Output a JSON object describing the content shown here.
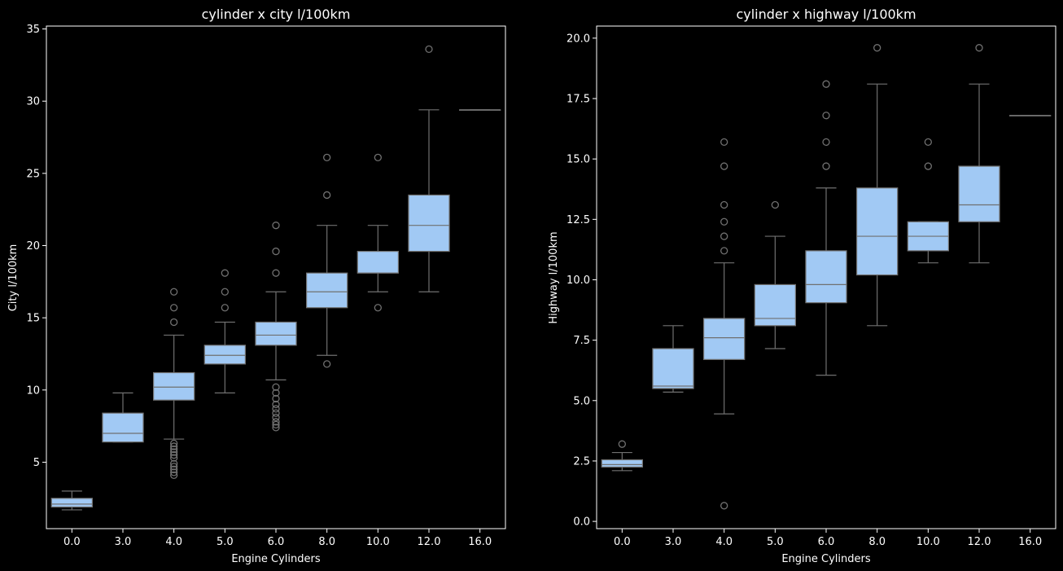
{
  "theme": {
    "background": "#000000",
    "spine_color": "#ffffff",
    "text_color": "#ffffff",
    "box_fill": "#a1c9f4",
    "line_color": "#707070"
  },
  "chart_data": [
    {
      "type": "box",
      "title": "cylinder x city l/100km",
      "xlabel": "Engine Cylinders",
      "ylabel": "City l/100km",
      "categories": [
        "0.0",
        "3.0",
        "4.0",
        "5.0",
        "6.0",
        "8.0",
        "10.0",
        "12.0",
        "16.0"
      ],
      "ylim": [
        0.4,
        35.2
      ],
      "yticks": [
        5,
        10,
        15,
        20,
        25,
        30,
        35
      ],
      "ytick_labels": [
        "5",
        "10",
        "15",
        "20",
        "25",
        "30",
        "35"
      ],
      "grid": false,
      "boxes": [
        {
          "whislo": 1.7,
          "q1": 1.9,
          "med": 2.1,
          "q3": 2.5,
          "whishi": 3.0,
          "fliers": []
        },
        {
          "whislo": 6.4,
          "q1": 6.4,
          "med": 7.0,
          "q3": 8.4,
          "whishi": 9.8,
          "fliers": []
        },
        {
          "whislo": 6.6,
          "q1": 9.3,
          "med": 10.2,
          "q3": 11.2,
          "whishi": 13.8,
          "fliers": [
            16.8,
            15.7,
            14.7,
            6.3,
            6.1,
            5.9,
            5.7,
            5.5,
            5.3,
            4.9,
            4.7,
            4.5,
            4.3,
            4.1
          ]
        },
        {
          "whislo": 9.8,
          "q1": 11.8,
          "med": 12.4,
          "q3": 13.1,
          "whishi": 14.7,
          "fliers": [
            18.1,
            16.8,
            15.7
          ]
        },
        {
          "whislo": 10.7,
          "q1": 13.1,
          "med": 13.8,
          "q3": 14.7,
          "whishi": 16.8,
          "fliers": [
            21.4,
            19.6,
            18.1,
            10.2,
            9.8,
            9.4,
            9.0,
            8.7,
            8.4,
            8.1,
            7.8,
            7.6,
            7.4
          ]
        },
        {
          "whislo": 12.4,
          "q1": 15.7,
          "med": 16.8,
          "q3": 18.1,
          "whishi": 21.4,
          "fliers": [
            26.1,
            23.5,
            11.8
          ]
        },
        {
          "whislo": 16.8,
          "q1": 18.1,
          "med": 18.1,
          "q3": 19.6,
          "whishi": 21.4,
          "fliers": [
            26.1,
            15.7
          ]
        },
        {
          "whislo": 16.8,
          "q1": 19.6,
          "med": 21.4,
          "q3": 23.5,
          "whishi": 29.4,
          "fliers": [
            33.6
          ]
        },
        {
          "whislo": 29.4,
          "q1": 29.4,
          "med": 29.4,
          "q3": 29.4,
          "whishi": 29.4,
          "fliers": []
        }
      ]
    },
    {
      "type": "box",
      "title": "cylinder x highway l/100km",
      "xlabel": "Engine Cylinders",
      "ylabel": "Highway l/100km",
      "categories": [
        "0.0",
        "3.0",
        "4.0",
        "5.0",
        "6.0",
        "8.0",
        "10.0",
        "12.0",
        "16.0"
      ],
      "ylim": [
        -0.3,
        20.5
      ],
      "yticks": [
        0.0,
        2.5,
        5.0,
        7.5,
        10.0,
        12.5,
        15.0,
        17.5,
        20.0
      ],
      "ytick_labels": [
        "0.0",
        "2.5",
        "5.0",
        "7.5",
        "10.0",
        "12.5",
        "15.0",
        "17.5",
        "20.0"
      ],
      "grid": false,
      "boxes": [
        {
          "whislo": 2.1,
          "q1": 2.25,
          "med": 2.35,
          "q3": 2.55,
          "whishi": 2.85,
          "fliers": [
            3.2
          ]
        },
        {
          "whislo": 5.35,
          "q1": 5.5,
          "med": 5.6,
          "q3": 7.15,
          "whishi": 8.1,
          "fliers": []
        },
        {
          "whislo": 4.45,
          "q1": 6.7,
          "med": 7.6,
          "q3": 8.4,
          "whishi": 10.7,
          "fliers": [
            15.7,
            14.7,
            13.1,
            12.4,
            11.8,
            11.2,
            0.65
          ]
        },
        {
          "whislo": 7.15,
          "q1": 8.1,
          "med": 8.4,
          "q3": 9.8,
          "whishi": 11.8,
          "fliers": [
            13.1
          ]
        },
        {
          "whislo": 6.05,
          "q1": 9.05,
          "med": 9.8,
          "q3": 11.2,
          "whishi": 13.8,
          "fliers": [
            18.1,
            16.8,
            15.7,
            14.7
          ]
        },
        {
          "whislo": 8.1,
          "q1": 10.2,
          "med": 11.8,
          "q3": 13.8,
          "whishi": 18.1,
          "fliers": [
            19.6
          ]
        },
        {
          "whislo": 10.7,
          "q1": 11.2,
          "med": 11.8,
          "q3": 12.4,
          "whishi": 12.4,
          "fliers": [
            15.7,
            14.7
          ]
        },
        {
          "whislo": 10.7,
          "q1": 12.4,
          "med": 13.1,
          "q3": 14.7,
          "whishi": 18.1,
          "fliers": [
            19.6
          ]
        },
        {
          "whislo": 16.8,
          "q1": 16.8,
          "med": 16.8,
          "q3": 16.8,
          "whishi": 16.8,
          "fliers": []
        }
      ]
    }
  ]
}
